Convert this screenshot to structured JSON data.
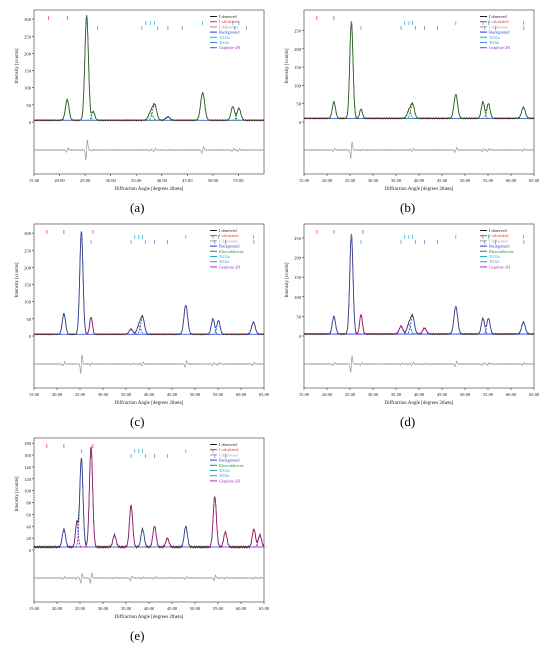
{
  "chart_data": [
    {
      "panel_label": "(a)",
      "type": "line",
      "xlabel": "Diffraction Angle [degrees 2theta]",
      "ylabel": "Intensity [counts]",
      "xlim": [
        15,
        60
      ],
      "ylim": [
        -100,
        320
      ],
      "xticks": [
        "15.00",
        "20.00",
        "25.00",
        "30.00",
        "35.00",
        "40.00",
        "45.00",
        "50.00",
        "55.00"
      ],
      "yticks": [
        "300",
        "250",
        "200",
        "150",
        "100",
        "50",
        "0"
      ],
      "legend": [
        "I observed",
        "I calculated",
        "I difference",
        "Background",
        "TiO2a",
        "TiO2r",
        "Graphite-2H"
      ],
      "baseline": 5,
      "peaks": [
        [
          21.5,
          60,
          0.35
        ],
        [
          25.3,
          305,
          0.35
        ],
        [
          26.6,
          25,
          0.3
        ],
        [
          37.8,
          22,
          0.4
        ],
        [
          38.6,
          45,
          0.4
        ],
        [
          41.2,
          10,
          0.4
        ],
        [
          48.0,
          80,
          0.4
        ],
        [
          53.9,
          40,
          0.35
        ],
        [
          55.1,
          35,
          0.35
        ]
      ],
      "phase_ticks": [
        {
          "series": "I calculated",
          "positions": [
            17.8,
            21.5
          ]
        },
        {
          "series": "TiO2a",
          "positions": [
            25.3,
            36.9,
            37.8,
            38.6,
            48.0,
            53.9,
            55.1
          ]
        },
        {
          "series": "TiO2r",
          "positions": [
            27.4,
            36.1,
            39.2,
            41.2,
            44.0,
            54.3,
            56.6
          ]
        }
      ]
    },
    {
      "panel_label": "(b)",
      "type": "line",
      "xlabel": "Diffraction Angle [degrees 2theta]",
      "ylabel": "Intensity [counts]",
      "xlim": [
        15,
        65
      ],
      "ylim": [
        -100,
        300
      ],
      "xticks": [
        "15.00",
        "20.00",
        "25.00",
        "30.00",
        "35.00",
        "40.00",
        "45.00",
        "50.00",
        "55.00",
        "60.00",
        "65.00"
      ],
      "yticks": [
        "250",
        "200",
        "150",
        "100",
        "50",
        "0"
      ],
      "legend": [
        "I observed",
        "I calculated",
        "I difference",
        "Background",
        "TiO2a",
        "TiO2r",
        "Graphite-2H"
      ],
      "baseline": 10,
      "peaks": [
        [
          21.5,
          45,
          0.35
        ],
        [
          25.3,
          265,
          0.35
        ],
        [
          27.4,
          25,
          0.3
        ],
        [
          37.8,
          20,
          0.4
        ],
        [
          38.6,
          38,
          0.4
        ],
        [
          48.0,
          65,
          0.4
        ],
        [
          53.9,
          45,
          0.35
        ],
        [
          55.1,
          40,
          0.35
        ],
        [
          62.7,
          30,
          0.4
        ]
      ],
      "phase_ticks": [
        {
          "series": "I calculated",
          "positions": [
            17.8,
            21.5
          ]
        },
        {
          "series": "TiO2a",
          "positions": [
            25.3,
            36.9,
            37.8,
            38.6,
            48.0,
            53.9,
            55.1,
            62.7
          ]
        },
        {
          "series": "TiO2r",
          "positions": [
            27.4,
            36.1,
            39.2,
            41.2,
            44.0,
            54.3,
            56.6,
            62.8
          ]
        }
      ]
    },
    {
      "panel_label": "(c)",
      "type": "line",
      "xlabel": "Diffraction Angle [degrees 2theta]",
      "ylabel": "Intensity [counts]",
      "xlim": [
        15,
        65
      ],
      "ylim": [
        -100,
        320
      ],
      "xticks": [
        "15.00",
        "20.00",
        "25.00",
        "30.00",
        "35.00",
        "40.00",
        "45.00",
        "50.00",
        "55.00",
        "60.00",
        "65.00"
      ],
      "yticks": [
        "300",
        "250",
        "200",
        "150",
        "100",
        "50",
        "0"
      ],
      "legend": [
        "I observed",
        "I calculated",
        "I difference",
        "Background",
        "Khoroshkevite",
        "TiO2a",
        "TiO2r",
        "Graphite-2H"
      ],
      "baseline": 5,
      "peaks": [
        [
          21.5,
          60,
          0.35
        ],
        [
          25.3,
          300,
          0.35
        ],
        [
          27.4,
          50,
          0.3
        ],
        [
          36.1,
          15,
          0.4
        ],
        [
          37.8,
          25,
          0.4
        ],
        [
          38.6,
          50,
          0.4
        ],
        [
          48.0,
          85,
          0.4
        ],
        [
          53.9,
          45,
          0.35
        ],
        [
          55.1,
          40,
          0.35
        ],
        [
          62.7,
          35,
          0.4
        ]
      ],
      "phase_ticks": [
        {
          "series": "I calculated",
          "positions": [
            17.8,
            21.5,
            27.8
          ]
        },
        {
          "series": "TiO2a",
          "positions": [
            25.3,
            36.9,
            37.8,
            38.6,
            48.0,
            53.9,
            55.1,
            62.7
          ]
        },
        {
          "series": "TiO2r",
          "positions": [
            27.4,
            36.1,
            39.2,
            41.2,
            44.0,
            54.3,
            56.6,
            62.8
          ]
        }
      ]
    },
    {
      "panel_label": "(d)",
      "type": "line",
      "xlabel": "Diffraction Angle [degrees 2theta]",
      "ylabel": "Intensity [counts]",
      "xlim": [
        15,
        65
      ],
      "ylim": [
        -100,
        280
      ],
      "xticks": [
        "15.00",
        "20.00",
        "25.00",
        "30.00",
        "35.00",
        "40.00",
        "45.00",
        "50.00",
        "55.00",
        "60.00",
        "65.00"
      ],
      "yticks": [
        "250",
        "200",
        "150",
        "100",
        "50",
        "0"
      ],
      "legend": [
        "I observed",
        "I calculated",
        "I difference",
        "Background",
        "Khoroshkevite",
        "TiO2a",
        "TiO2r",
        "Graphite-2H"
      ],
      "baseline": 5,
      "peaks": [
        [
          21.5,
          45,
          0.35
        ],
        [
          25.3,
          255,
          0.35
        ],
        [
          27.4,
          50,
          0.3
        ],
        [
          36.1,
          20,
          0.4
        ],
        [
          37.8,
          25,
          0.4
        ],
        [
          38.6,
          45,
          0.4
        ],
        [
          41.2,
          15,
          0.4
        ],
        [
          48.0,
          70,
          0.4
        ],
        [
          53.9,
          40,
          0.35
        ],
        [
          55.1,
          40,
          0.35
        ],
        [
          62.7,
          30,
          0.4
        ]
      ],
      "phase_ticks": [
        {
          "series": "I calculated",
          "positions": [
            17.8,
            21.5,
            27.8
          ]
        },
        {
          "series": "TiO2a",
          "positions": [
            25.3,
            36.9,
            37.8,
            38.6,
            48.0,
            53.9,
            55.1,
            62.7
          ]
        },
        {
          "series": "TiO2r",
          "positions": [
            27.4,
            36.1,
            39.2,
            41.2,
            44.0,
            54.3,
            56.6,
            62.8
          ]
        }
      ]
    },
    {
      "panel_label": "(e)",
      "type": "line",
      "xlabel": "Diffraction Angle [degrees 2theta]",
      "ylabel": "Intensity [counts]",
      "xlim": [
        15,
        65
      ],
      "ylim": [
        -60,
        185
      ],
      "xticks": [
        "15.00",
        "20.00",
        "25.00",
        "30.00",
        "35.00",
        "40.00",
        "45.00",
        "50.00",
        "55.00",
        "60.00",
        "65.00"
      ],
      "yticks": [
        "180",
        "160",
        "140",
        "120",
        "100",
        "80",
        "60",
        "40",
        "20",
        "0"
      ],
      "legend": [
        "I observed",
        "I calculated",
        "I difference",
        "Background",
        "Khoroshkevite",
        "TiO2a",
        "TiO2r",
        "Graphite-2H"
      ],
      "baseline": 5,
      "peaks": [
        [
          21.5,
          30,
          0.35
        ],
        [
          24.3,
          40,
          0.3
        ],
        [
          25.3,
          150,
          0.35
        ],
        [
          27.4,
          170,
          0.35
        ],
        [
          32.5,
          20,
          0.35
        ],
        [
          36.1,
          70,
          0.35
        ],
        [
          38.6,
          30,
          0.35
        ],
        [
          41.2,
          35,
          0.35
        ],
        [
          44.0,
          15,
          0.35
        ],
        [
          48.0,
          35,
          0.35
        ],
        [
          54.3,
          85,
          0.35
        ],
        [
          56.6,
          25,
          0.35
        ],
        [
          62.8,
          30,
          0.35
        ],
        [
          64.1,
          20,
          0.35
        ]
      ],
      "phase_ticks": [
        {
          "series": "I calculated",
          "positions": [
            17.8,
            21.5,
            27.8
          ]
        },
        {
          "series": "TiO2a",
          "positions": [
            25.3,
            36.9,
            37.8,
            38.6,
            48.0,
            53.9
          ]
        },
        {
          "series": "TiO2r",
          "positions": [
            27.4,
            36.1,
            39.2,
            41.2,
            44.0,
            54.3,
            56.6
          ]
        }
      ]
    }
  ],
  "colors": {
    "I observed": "#1a1a1a",
    "I calculated": "#e8312d",
    "I difference": "#9a9a9a",
    "Background": "#1f3bd0",
    "Khoroshkevite": "#2c8f35",
    "TiO2a": "#1fb0c8",
    "TiO2r": "#3e8cd8",
    "Graphite-2H": "#a033c4",
    "peak": "#1e8a2e",
    "peak_blue": "#2a55d6",
    "peak_magenta": "#c2189a"
  }
}
